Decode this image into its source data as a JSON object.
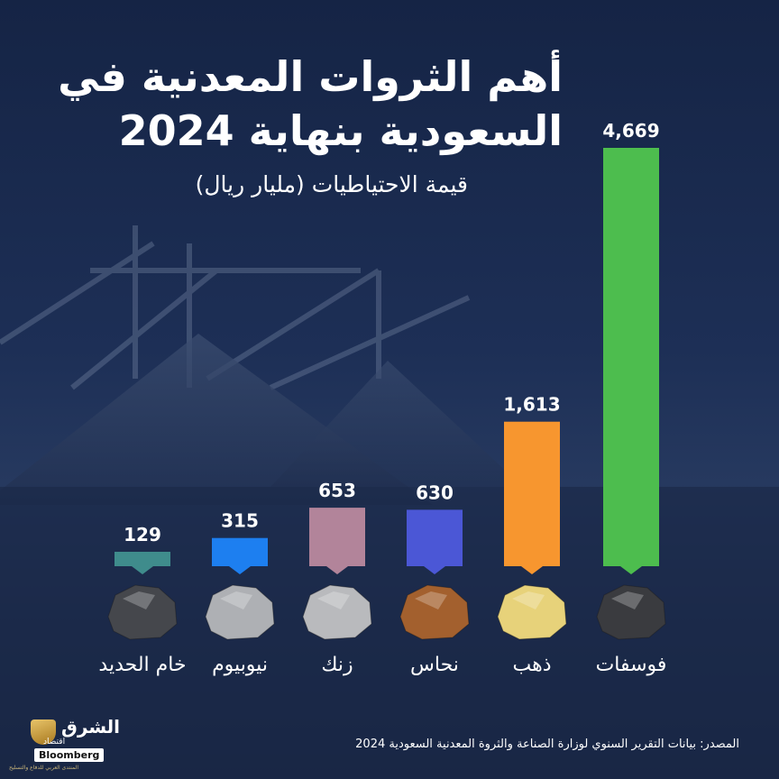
{
  "title_lines": [
    "أهم الثروات المعدنية في",
    "السعودية بنهاية 2024"
  ],
  "subtitle": "قيمة الاحتياطيات (مليار ريال)",
  "source": "المصدر: بيانات التقرير السنوي لوزارة الصناعة والثروة المعدنية السعودية 2024",
  "logo": {
    "name": "الشرق",
    "sub": "اقتصاد",
    "bloomberg": "Bloomberg",
    "tagline": "المنتدى العربي للدفاع والتسليح"
  },
  "chart_data": {
    "type": "bar",
    "categories": [
      "فوسفات",
      "ذهب",
      "نحاس",
      "زنك",
      "نيوبيوم",
      "خام الحديد"
    ],
    "values": [
      4669,
      1613,
      630,
      653,
      315,
      129
    ],
    "value_labels": [
      "4,669",
      "1,613",
      "630",
      "653",
      "315",
      "129"
    ],
    "colors": [
      "#4dbd4e",
      "#f7962f",
      "#4b57d6",
      "#b2849a",
      "#1d7ff0",
      "#3f8c8c"
    ],
    "rock_colors": [
      "#3a3b3f",
      "#e7d27a",
      "#a3602e",
      "#b9babd",
      "#aeb0b4",
      "#45474c"
    ],
    "title": "أهم الثروات المعدنية في السعودية بنهاية 2024",
    "ylabel": "قيمة الاحتياطيات (مليار ريال)",
    "ylim": [
      0,
      4669
    ],
    "grid": false,
    "legend": "none"
  }
}
